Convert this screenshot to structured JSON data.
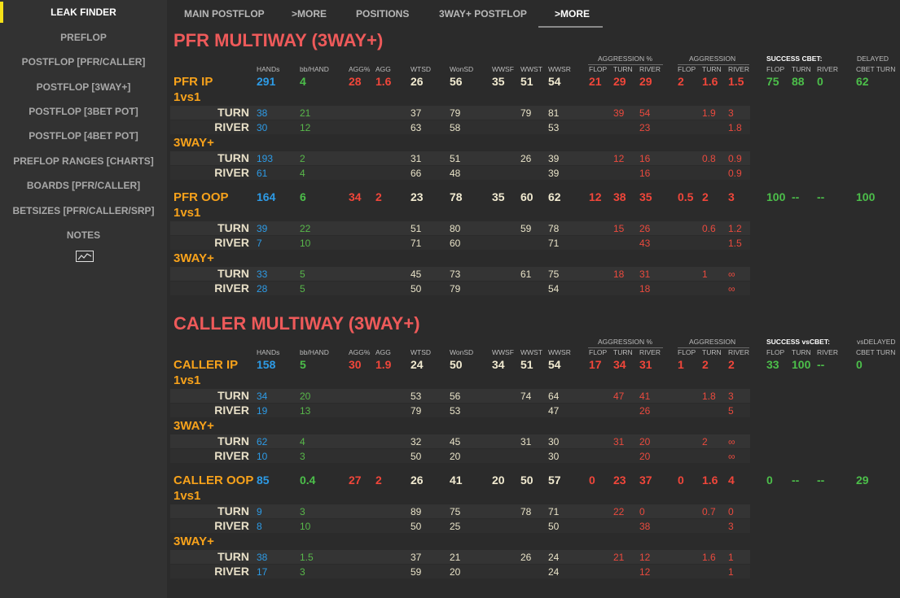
{
  "sidebar": {
    "items": [
      "LEAK FINDER",
      "PREFLOP",
      "POSTFLOP [PFR/CALLER]",
      "POSTFLOP [3WAY+]",
      "POSTFLOP [3BET POT]",
      "POSTFLOP [4BET POT]",
      "PREFLOP RANGES [CHARTS]",
      "BOARDS [PFR/CALLER]",
      "BETSIZES [PFR/CALLER/SRP]",
      "NOTES"
    ],
    "active_index": 0,
    "icon": "line-chart-icon"
  },
  "tabs": {
    "items": [
      "MAIN POSTFLOP",
      ">MORE",
      "POSITIONS",
      "3WAY+ POSTFLOP",
      ">MORE"
    ],
    "active_index": 4
  },
  "colors": {
    "accent": "#f5e118",
    "title_red": "#ee5a5a",
    "label_orange": "#f7a21b",
    "blue": "#2d9be6",
    "green": "#58b84a",
    "red": "#ea4a3e",
    "cream": "#e9e3c8"
  },
  "sections": [
    {
      "title": "PFR MULTIWAY (3WAY+)",
      "headers": {
        "group_aggr_pct": "AGGRESSION %",
        "group_aggr": "AGGRESSION",
        "group_success": "SUCCESS CBET:",
        "group_delayed": "DELAYED",
        "cols": [
          "HANDs",
          "bb/HAND",
          "AGG%",
          "AGG",
          "WTSD",
          "WonSD",
          "WWSF",
          "WWST",
          "WWSR",
          "FLOP",
          "TURN",
          "RIVER",
          "FLOP",
          "TURN",
          "RIVER",
          "FLOP",
          "TURN",
          "RIVER",
          "CBET TURN"
        ]
      },
      "blocks": [
        {
          "label": "PFR IP",
          "main": [
            "291",
            "4",
            "28",
            "1.6",
            "26",
            "56",
            "35",
            "51",
            "54",
            "21",
            "29",
            "29",
            "2",
            "1.6",
            "1.5",
            "75",
            "88",
            "0",
            "62"
          ],
          "groups": [
            {
              "label": "1vs1",
              "rows": [
                {
                  "street": "TURN",
                  "vals": [
                    "38",
                    "21",
                    "",
                    "",
                    "37",
                    "79",
                    "",
                    "79",
                    "81",
                    "",
                    "39",
                    "54",
                    "",
                    "1.9",
                    "3"
                  ]
                },
                {
                  "street": "RIVER",
                  "vals": [
                    "30",
                    "12",
                    "",
                    "",
                    "63",
                    "58",
                    "",
                    "",
                    "53",
                    "",
                    "",
                    "23",
                    "",
                    "",
                    "1.8"
                  ]
                }
              ]
            },
            {
              "label": "3WAY+",
              "rows": [
                {
                  "street": "TURN",
                  "vals": [
                    "193",
                    "2",
                    "",
                    "",
                    "31",
                    "51",
                    "",
                    "26",
                    "39",
                    "",
                    "12",
                    "16",
                    "",
                    "0.8",
                    "0.9"
                  ]
                },
                {
                  "street": "RIVER",
                  "vals": [
                    "61",
                    "4",
                    "",
                    "",
                    "66",
                    "48",
                    "",
                    "",
                    "39",
                    "",
                    "",
                    "16",
                    "",
                    "",
                    "0.9"
                  ]
                }
              ]
            }
          ]
        },
        {
          "label": "PFR OOP",
          "main": [
            "164",
            "6",
            "34",
            "2",
            "23",
            "78",
            "35",
            "60",
            "62",
            "12",
            "38",
            "35",
            "0.5",
            "2",
            "3",
            "100",
            "--",
            "--",
            "100"
          ],
          "groups": [
            {
              "label": "1vs1",
              "rows": [
                {
                  "street": "TURN",
                  "vals": [
                    "39",
                    "22",
                    "",
                    "",
                    "51",
                    "80",
                    "",
                    "59",
                    "78",
                    "",
                    "15",
                    "26",
                    "",
                    "0.6",
                    "1.2"
                  ]
                },
                {
                  "street": "RIVER",
                  "vals": [
                    "7",
                    "10",
                    "",
                    "",
                    "71",
                    "60",
                    "",
                    "",
                    "71",
                    "",
                    "",
                    "43",
                    "",
                    "",
                    "1.5"
                  ]
                }
              ]
            },
            {
              "label": "3WAY+",
              "rows": [
                {
                  "street": "TURN",
                  "vals": [
                    "33",
                    "5",
                    "",
                    "",
                    "45",
                    "73",
                    "",
                    "61",
                    "75",
                    "",
                    "18",
                    "31",
                    "",
                    "1",
                    "∞"
                  ]
                },
                {
                  "street": "RIVER",
                  "vals": [
                    "28",
                    "5",
                    "",
                    "",
                    "50",
                    "79",
                    "",
                    "",
                    "54",
                    "",
                    "",
                    "18",
                    "",
                    "",
                    "∞"
                  ]
                }
              ]
            }
          ]
        }
      ]
    },
    {
      "title": "CALLER MULTIWAY (3WAY+)",
      "headers": {
        "group_aggr_pct": "AGGRESSION %",
        "group_aggr": "AGGRESSION",
        "group_success": "SUCCESS vsCBET:",
        "group_delayed": "vsDELAYED",
        "cols": [
          "HANDs",
          "bb/HAND",
          "AGG%",
          "AGG",
          "WTSD",
          "WonSD",
          "WWSF",
          "WWST",
          "WWSR",
          "FLOP",
          "TURN",
          "RIVER",
          "FLOP",
          "TURN",
          "RIVER",
          "FLOP",
          "TURN",
          "RIVER",
          "CBET TURN"
        ]
      },
      "blocks": [
        {
          "label": "CALLER IP",
          "main": [
            "158",
            "5",
            "30",
            "1.9",
            "24",
            "50",
            "34",
            "51",
            "54",
            "17",
            "34",
            "31",
            "1",
            "2",
            "2",
            "33",
            "100",
            "--",
            "0"
          ],
          "groups": [
            {
              "label": "1vs1",
              "rows": [
                {
                  "street": "TURN",
                  "vals": [
                    "34",
                    "20",
                    "",
                    "",
                    "53",
                    "56",
                    "",
                    "74",
                    "64",
                    "",
                    "47",
                    "41",
                    "",
                    "1.8",
                    "3"
                  ]
                },
                {
                  "street": "RIVER",
                  "vals": [
                    "19",
                    "13",
                    "",
                    "",
                    "79",
                    "53",
                    "",
                    "",
                    "47",
                    "",
                    "",
                    "26",
                    "",
                    "",
                    "5"
                  ]
                }
              ]
            },
            {
              "label": "3WAY+",
              "rows": [
                {
                  "street": "TURN",
                  "vals": [
                    "62",
                    "4",
                    "",
                    "",
                    "32",
                    "45",
                    "",
                    "31",
                    "30",
                    "",
                    "31",
                    "20",
                    "",
                    "2",
                    "∞"
                  ]
                },
                {
                  "street": "RIVER",
                  "vals": [
                    "10",
                    "3",
                    "",
                    "",
                    "50",
                    "20",
                    "",
                    "",
                    "30",
                    "",
                    "",
                    "20",
                    "",
                    "",
                    "∞"
                  ]
                }
              ]
            }
          ]
        },
        {
          "label": "CALLER OOP",
          "main": [
            "85",
            "0.4",
            "27",
            "2",
            "26",
            "41",
            "20",
            "50",
            "57",
            "0",
            "23",
            "37",
            "0",
            "1.6",
            "4",
            "0",
            "--",
            "--",
            "29"
          ],
          "groups": [
            {
              "label": "1vs1",
              "rows": [
                {
                  "street": "TURN",
                  "vals": [
                    "9",
                    "3",
                    "",
                    "",
                    "89",
                    "75",
                    "",
                    "78",
                    "71",
                    "",
                    "22",
                    "0",
                    "",
                    "0.7",
                    "0"
                  ]
                },
                {
                  "street": "RIVER",
                  "vals": [
                    "8",
                    "10",
                    "",
                    "",
                    "50",
                    "25",
                    "",
                    "",
                    "50",
                    "",
                    "",
                    "38",
                    "",
                    "",
                    "3"
                  ]
                }
              ]
            },
            {
              "label": "3WAY+",
              "rows": [
                {
                  "street": "TURN",
                  "vals": [
                    "38",
                    "1.5",
                    "",
                    "",
                    "37",
                    "21",
                    "",
                    "26",
                    "24",
                    "",
                    "21",
                    "12",
                    "",
                    "1.6",
                    "1"
                  ]
                },
                {
                  "street": "RIVER",
                  "vals": [
                    "17",
                    "3",
                    "",
                    "",
                    "59",
                    "20",
                    "",
                    "",
                    "24",
                    "",
                    "",
                    "12",
                    "",
                    "",
                    "1"
                  ]
                }
              ]
            }
          ]
        }
      ]
    }
  ]
}
